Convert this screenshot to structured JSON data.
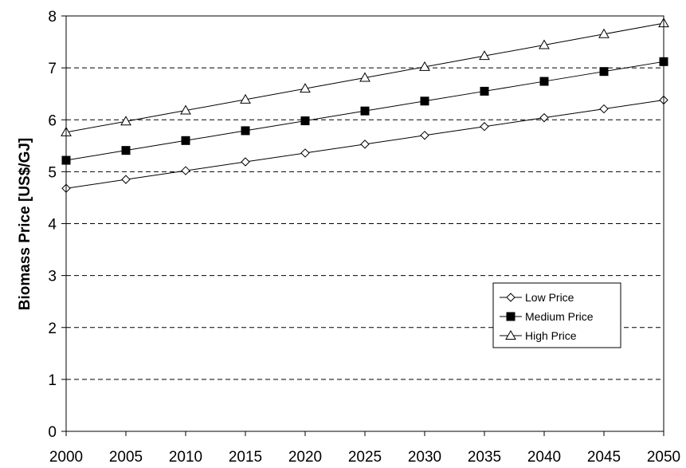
{
  "chart_data": {
    "type": "line",
    "title": "",
    "xlabel": "",
    "ylabel": "Biomass Price [US$/GJ]",
    "x": [
      2000,
      2005,
      2010,
      2015,
      2020,
      2025,
      2030,
      2035,
      2040,
      2045,
      2050
    ],
    "xlim": [
      2000,
      2050
    ],
    "ylim": [
      0,
      8
    ],
    "yticks": [
      0,
      1,
      2,
      3,
      4,
      5,
      6,
      7,
      8
    ],
    "grid": "horizontal-dashed",
    "legend_position": "bottom-right",
    "series": [
      {
        "name": "Low Price",
        "marker": "diamond-open",
        "values": [
          4.68,
          4.85,
          5.02,
          5.19,
          5.36,
          5.53,
          5.7,
          5.87,
          6.04,
          6.21,
          6.38
        ]
      },
      {
        "name": "Medium Price",
        "marker": "square-filled",
        "values": [
          5.22,
          5.41,
          5.6,
          5.79,
          5.98,
          6.17,
          6.36,
          6.55,
          6.74,
          6.93,
          7.12
        ]
      },
      {
        "name": "High Price",
        "marker": "triangle-open",
        "values": [
          5.76,
          5.97,
          6.18,
          6.39,
          6.6,
          6.81,
          7.02,
          7.23,
          7.44,
          7.65,
          7.86
        ]
      }
    ]
  }
}
